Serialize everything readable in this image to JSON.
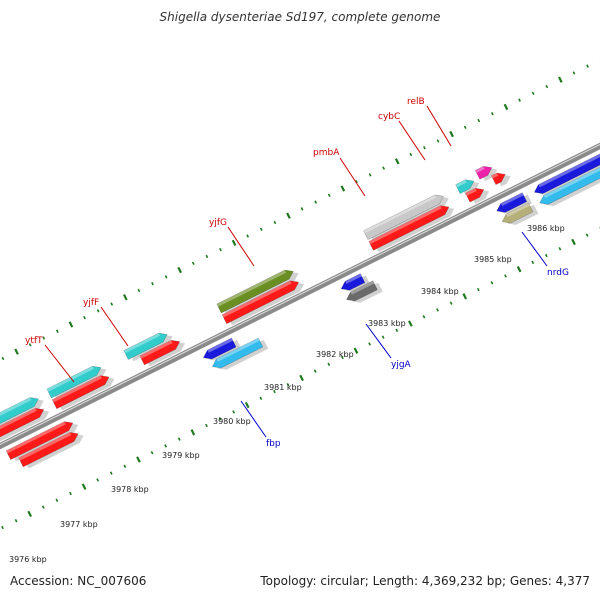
{
  "title": "Shigella dysenteriae Sd197, complete genome",
  "footer": {
    "accession_label": "Accession:",
    "accession": "NC_007606",
    "summary": "Topology: circular; Length: 4,369,232 bp; Genes: 4,377"
  },
  "colors": {
    "backbone": "#8a8a8a",
    "tick": "#1f7a1f",
    "label_top": "#cc0000",
    "label_bottom": "#0000cc",
    "cds": "#ff1a1a",
    "cyan": "#33cccc",
    "skyblue": "#33bbee",
    "olive": "#6b8e23",
    "lightgray": "#c8c8c8",
    "magenta": "#ee22aa",
    "blue": "#1a1add",
    "khaki": "#b5b07a",
    "darkgray": "#6a6a6a"
  },
  "scale": {
    "unit": "kbp",
    "ticks": [
      "3976 kbp",
      "3977 kbp",
      "3978 kbp",
      "3979 kbp",
      "3980 kbp",
      "3981 kbp",
      "3982 kbp",
      "3983 kbp",
      "3984 kbp",
      "3985 kbp",
      "3986 kbp"
    ]
  },
  "genes_top": [
    {
      "name": "ytfT",
      "color": "cyan"
    },
    {
      "name": "yjfF",
      "color": "cyan"
    },
    {
      "name": "yjfG",
      "color": "olive"
    },
    {
      "name": "pmbA",
      "color": "lightgray"
    },
    {
      "name": "cybC",
      "color": "cyan"
    },
    {
      "name": "relB",
      "color": "magenta"
    }
  ],
  "genes_bottom": [
    {
      "name": "fbp",
      "color": "skyblue"
    },
    {
      "name": "yjgA",
      "color": "darkgray"
    },
    {
      "name": "nrdG",
      "color": "khaki"
    }
  ]
}
